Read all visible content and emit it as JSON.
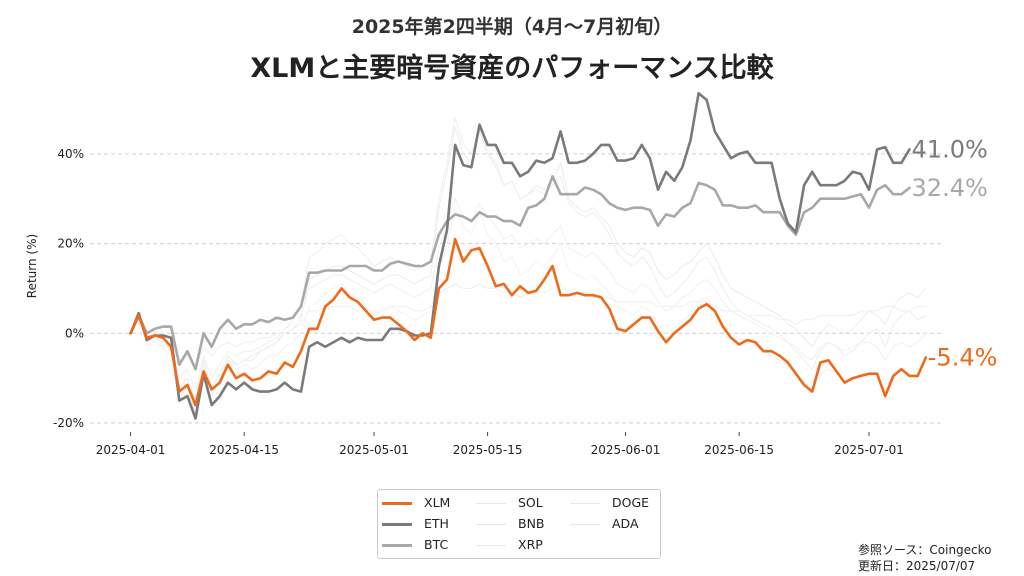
{
  "chart_data": {
    "type": "line",
    "subtitle": "2025年第2四半期（4月〜7月初旬）",
    "title": "XLMと主要暗号資産のパフォーマンス比較",
    "ylabel": "Return (%)",
    "xlabel": "",
    "ylim": [
      -22,
      52
    ],
    "grid": "horizontal dashed",
    "y_ticks": [
      {
        "value": -20,
        "label": "-20%"
      },
      {
        "value": 0,
        "label": "0%"
      },
      {
        "value": 20,
        "label": "20%"
      },
      {
        "value": 40,
        "label": "40%"
      }
    ],
    "x_ticks": [
      {
        "day": 0,
        "label": "2025-04-01"
      },
      {
        "day": 14,
        "label": "2025-04-15"
      },
      {
        "day": 30,
        "label": "2025-05-01"
      },
      {
        "day": 44,
        "label": "2025-05-15"
      },
      {
        "day": 61,
        "label": "2025-06-01"
      },
      {
        "day": 75,
        "label": "2025-06-15"
      },
      {
        "day": 91,
        "label": "2025-07-01"
      }
    ],
    "x_range_days": [
      -5,
      100
    ],
    "series": [
      {
        "name": "XLM",
        "color": "#ee6a1b",
        "emphasis": "highlight",
        "final_label": "-5.4%",
        "label_color": "#ee6a1b",
        "values": [
          0,
          4,
          -1,
          -0.5,
          -1,
          -3,
          -13,
          -11.5,
          -16,
          -8.5,
          -12.5,
          -11,
          -7,
          -10,
          -9,
          -10.5,
          -10,
          -8.5,
          -9,
          -6.5,
          -7.5,
          -4,
          1,
          1,
          6,
          7.5,
          10,
          8,
          7,
          5,
          3,
          3.5,
          3.5,
          2,
          0.5,
          -1.5,
          0,
          -1,
          10,
          12,
          21,
          16,
          18.5,
          19,
          15,
          10.5,
          11,
          8.5,
          10.5,
          9,
          9.5,
          12,
          15,
          8.5,
          8.5,
          9,
          8.5,
          8.5,
          8,
          5.5,
          1,
          0.5,
          2,
          3.5,
          3.5,
          0.5,
          -2,
          0,
          1.5,
          3,
          5.5,
          6.5,
          5,
          1.5,
          -1,
          -2.5,
          -1.5,
          -2,
          -4,
          -4,
          -5,
          -6.5,
          -9,
          -11.5,
          -13,
          -6.5,
          -6,
          -8.5,
          -11,
          -10,
          -9.5,
          -9,
          -9,
          -14,
          -9.5,
          -8,
          -9.5,
          -9.5,
          -5.4
        ]
      },
      {
        "name": "ETH",
        "color": "#7a7a7a",
        "emphasis": "highlight",
        "final_label": "41.0%",
        "label_color": "#7a7a7a",
        "values": [
          0,
          4.5,
          -1.5,
          -0.5,
          -0.5,
          -1,
          -15,
          -14,
          -19,
          -9,
          -16,
          -14,
          -11,
          -12.5,
          -11,
          -12.5,
          -13,
          -13,
          -12.5,
          -11,
          -12.5,
          -13,
          -3,
          -2,
          -3,
          -2,
          -1,
          -2,
          -1,
          -1.5,
          -1.5,
          -1.5,
          1,
          1,
          0.5,
          -0.5,
          -0.5,
          0,
          15,
          23,
          42,
          37.5,
          37,
          46.5,
          42,
          42,
          38,
          38,
          35,
          36,
          38.5,
          38,
          39,
          45,
          38,
          38,
          38.5,
          40,
          42,
          42,
          38.5,
          38.5,
          39,
          42,
          39,
          32,
          36,
          34,
          37,
          43,
          53.5,
          52,
          45,
          42,
          39,
          40,
          40.5,
          38,
          38,
          38,
          30,
          24.5,
          22.5,
          33,
          36,
          33,
          33,
          33,
          34,
          36,
          35.5,
          32,
          41,
          41.5,
          38,
          38,
          41
        ]
      },
      {
        "name": "BTC",
        "color": "#a8a8a8",
        "emphasis": "highlight",
        "final_label": "32.4%",
        "label_color": "#a8a8a8",
        "values": [
          0,
          4,
          0,
          1,
          1.5,
          1.5,
          -7,
          -4,
          -8,
          0,
          -3,
          1,
          3,
          1,
          2,
          2,
          3,
          2.5,
          3.5,
          3,
          3.5,
          6,
          13.5,
          13.5,
          14,
          14,
          14,
          15,
          15,
          15,
          14,
          14,
          15.5,
          16,
          15.5,
          15,
          15,
          16,
          22,
          25,
          26.5,
          26,
          25,
          27,
          26,
          26,
          25,
          25,
          24,
          28,
          28.5,
          30,
          35,
          31,
          31,
          31,
          32.5,
          32,
          31,
          29,
          28,
          27.5,
          28,
          28,
          27.5,
          24,
          26.5,
          26,
          28,
          29,
          33.5,
          33,
          32,
          28.5,
          28.5,
          28,
          28,
          28.5,
          27,
          27,
          27,
          24,
          22,
          27,
          28,
          30,
          30,
          30,
          30,
          30.5,
          31,
          28,
          32,
          33,
          31,
          31,
          32.4
        ]
      },
      {
        "name": "SOL",
        "color": "#ececec",
        "emphasis": "faint",
        "final_label": "",
        "values": [
          0,
          3,
          -2,
          -1,
          -2,
          -4,
          -12,
          -10,
          -15,
          -6,
          -12,
          -9,
          -5,
          -7,
          -6,
          -6,
          -4,
          -3,
          -2,
          0,
          1,
          3,
          12,
          13,
          14,
          15,
          15,
          14,
          13,
          12,
          11,
          12,
          13,
          13,
          12,
          11,
          12,
          13,
          28,
          36,
          46,
          40,
          38,
          45,
          40,
          38,
          33,
          34,
          30,
          31,
          33,
          32,
          34,
          38,
          30,
          28,
          27,
          28,
          26,
          24,
          20,
          18,
          17,
          19,
          18,
          14,
          12,
          13,
          15,
          16,
          18,
          20,
          17,
          13,
          10,
          9,
          8,
          7,
          6,
          5,
          4,
          2,
          1,
          -1,
          -3,
          0,
          2,
          1,
          0,
          1,
          3,
          5,
          4,
          2,
          6,
          8,
          9,
          8,
          10
        ]
      },
      {
        "name": "BNB",
        "color": "#efefef",
        "emphasis": "faint",
        "final_label": "",
        "values": [
          0,
          2,
          0,
          0.5,
          0,
          -1,
          -6,
          -5,
          -8,
          -3,
          -5,
          -3,
          -2,
          -3,
          -2,
          -2,
          -1,
          -1,
          0,
          0,
          1,
          2,
          5,
          5,
          6,
          6,
          6,
          6,
          5,
          5,
          5,
          5,
          6,
          6,
          6,
          5,
          5,
          6,
          9,
          10,
          11,
          10,
          10,
          11,
          10,
          10,
          9,
          9,
          8,
          9,
          9,
          9,
          10,
          11,
          9,
          9,
          9,
          9,
          8,
          8,
          7,
          7,
          7,
          7,
          7,
          6,
          6,
          6,
          6,
          7,
          7,
          7,
          6,
          5,
          5,
          5,
          4,
          4,
          4,
          4,
          3,
          3,
          2,
          3,
          3,
          4,
          4,
          4,
          4,
          4,
          5,
          5,
          5,
          6,
          6,
          5,
          5,
          6,
          6
        ]
      },
      {
        "name": "XRP",
        "color": "#f3f3f3",
        "emphasis": "faint",
        "final_label": "",
        "values": [
          0,
          3,
          -3,
          -2,
          -3,
          -5,
          -14,
          -12,
          -17,
          -7,
          -13,
          -10,
          -6,
          -8,
          -7,
          -8,
          -7,
          -5,
          -5,
          -3,
          -2,
          0,
          6,
          7,
          9,
          10,
          11,
          9,
          8,
          6,
          4,
          5,
          6,
          5,
          4,
          3,
          4,
          5,
          14,
          20,
          28,
          24,
          22,
          27,
          22,
          20,
          16,
          17,
          13,
          14,
          16,
          15,
          17,
          20,
          14,
          13,
          12,
          13,
          11,
          9,
          6,
          5,
          4,
          6,
          5,
          2,
          0,
          1,
          3,
          4,
          7,
          8,
          5,
          2,
          0,
          -1,
          -2,
          -3,
          -4,
          -5,
          -6,
          -7,
          -9,
          -11,
          -13,
          -9,
          -8,
          -9,
          -11,
          -10,
          -9,
          -9,
          -10,
          -14,
          -11,
          -10,
          -11,
          -10,
          -8
        ]
      },
      {
        "name": "DOGE",
        "color": "#eeeeee",
        "emphasis": "faint",
        "final_label": "",
        "values": [
          0,
          4,
          -2,
          -1,
          -2,
          -4,
          -15,
          -12,
          -18,
          -8,
          -14,
          -10,
          -6,
          -7,
          -6,
          -5,
          -4,
          -3,
          -2,
          1,
          3,
          6,
          17,
          18,
          20,
          21,
          22,
          20,
          19,
          17,
          15,
          16,
          17,
          16,
          15,
          14,
          15,
          16,
          30,
          38,
          48,
          42,
          40,
          46,
          40,
          37,
          33,
          34,
          30,
          31,
          32,
          31,
          33,
          35,
          29,
          27,
          26,
          27,
          25,
          22,
          18,
          16,
          15,
          17,
          15,
          11,
          8,
          9,
          11,
          13,
          16,
          17,
          14,
          10,
          7,
          5,
          4,
          3,
          2,
          1,
          0,
          -2,
          -4,
          -6,
          -8,
          -4,
          -2,
          -3,
          -5,
          -4,
          -2,
          0,
          1,
          -3,
          2,
          4,
          5,
          3,
          4
        ]
      },
      {
        "name": "ADA",
        "color": "#f0f0f0",
        "emphasis": "faint",
        "final_label": "",
        "values": [
          0,
          3,
          -1,
          0,
          -1,
          -3,
          -10,
          -8,
          -13,
          -5,
          -10,
          -7,
          -4,
          -5,
          -4,
          -4,
          -3,
          -2,
          -1,
          1,
          2,
          4,
          10,
          11,
          12,
          13,
          13,
          12,
          11,
          10,
          9,
          10,
          11,
          10,
          9,
          8,
          9,
          10,
          19,
          24,
          30,
          26,
          25,
          29,
          26,
          24,
          21,
          22,
          19,
          20,
          21,
          20,
          22,
          24,
          19,
          18,
          17,
          18,
          16,
          14,
          11,
          10,
          9,
          11,
          10,
          7,
          5,
          6,
          8,
          9,
          11,
          12,
          10,
          7,
          5,
          4,
          3,
          2,
          1,
          0,
          -1,
          -2,
          -3,
          -5,
          -6,
          -3,
          -2,
          -3,
          -4,
          -3,
          -2,
          -2,
          -3,
          -6,
          -3,
          -2,
          -3,
          -2,
          0
        ]
      }
    ]
  },
  "legend": {
    "items": [
      {
        "name": "XLM",
        "color": "#ee6a1b",
        "width": 3
      },
      {
        "name": "ETH",
        "color": "#7a7a7a",
        "width": 3
      },
      {
        "name": "BTC",
        "color": "#a8a8a8",
        "width": 3
      },
      {
        "name": "SOL",
        "color": "#ececec",
        "width": 1
      },
      {
        "name": "BNB",
        "color": "#efefef",
        "width": 1
      },
      {
        "name": "XRP",
        "color": "#f3f3f3",
        "width": 1
      },
      {
        "name": "DOGE",
        "color": "#eeeeee",
        "width": 1
      },
      {
        "name": "ADA",
        "color": "#f0f0f0",
        "width": 1
      }
    ]
  },
  "source": {
    "reference": "参照ソース：Coingecko",
    "updated": "更新日：2025/07/07"
  }
}
